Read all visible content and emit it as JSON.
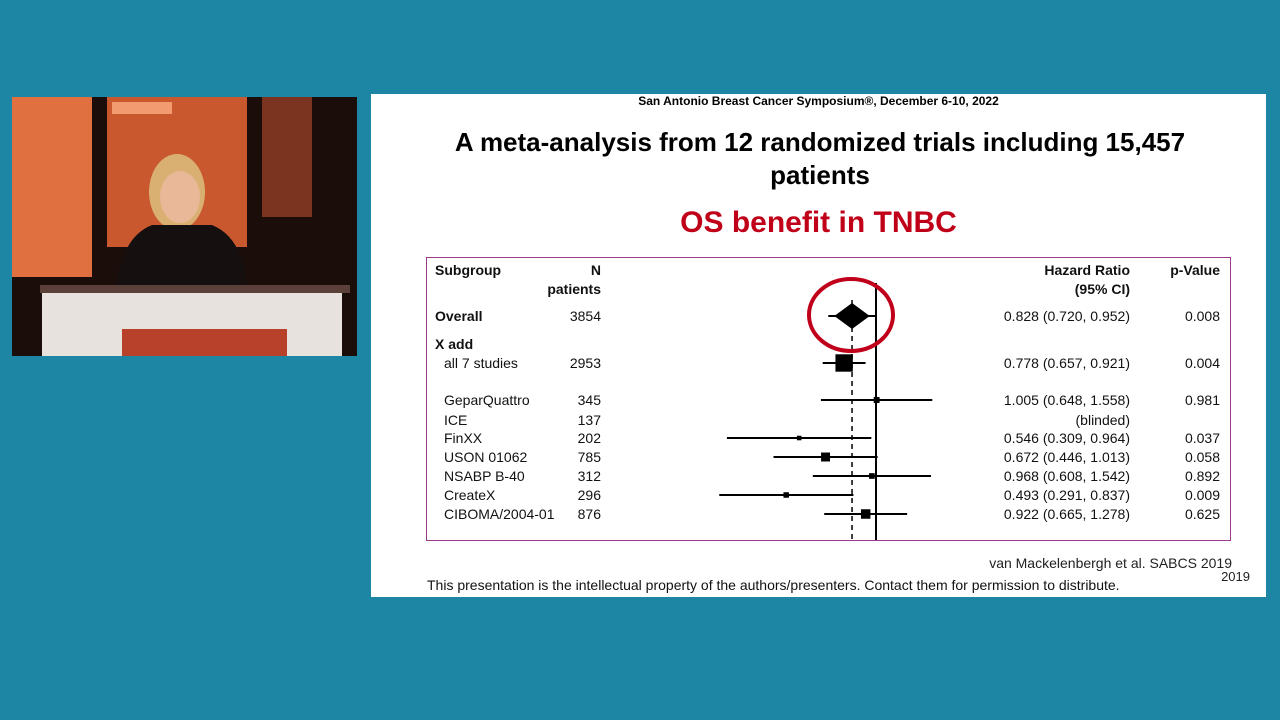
{
  "chart_data": {
    "type": "forest",
    "conference": "San Antonio Breast Cancer Symposium®, December 6-10, 2022",
    "title": "A meta-analysis from 12 randomized trials including 15,457 patients",
    "subtitle": "OS benefit in TNBC",
    "columns": {
      "subgroup": "Subgroup",
      "n": [
        "N",
        "patients"
      ],
      "hr": [
        "Hazard Ratio",
        "(95% CI)"
      ],
      "p": "p-Value"
    },
    "rows": [
      {
        "label": "Overall",
        "n": 3854,
        "hr": 0.828,
        "lo": 0.72,
        "hi": 0.952,
        "hr_label": "0.828 (0.720, 0.952)",
        "p": 0.008,
        "bold": true,
        "marker": "diamond"
      },
      {
        "label": "X add",
        "bold": true
      },
      {
        "label": "all 7 studies",
        "n": 2953,
        "hr": 0.778,
        "lo": 0.657,
        "hi": 0.921,
        "hr_label": "0.778 (0.657, 0.921)",
        "p": 0.004
      },
      {
        "label": "GeparQuattro",
        "n": 345,
        "hr": 1.005,
        "lo": 0.648,
        "hi": 1.558,
        "hr_label": "1.005 (0.648, 1.558)",
        "p": 0.981
      },
      {
        "label": "ICE",
        "n": 137,
        "hr_label": "(blinded)"
      },
      {
        "label": "FinXX",
        "n": 202,
        "hr": 0.546,
        "lo": 0.309,
        "hi": 0.964,
        "hr_label": "0.546 (0.309, 0.964)",
        "p": 0.037
      },
      {
        "label": "USON 01062",
        "n": 785,
        "hr": 0.672,
        "lo": 0.446,
        "hi": 1.013,
        "hr_label": "0.672 (0.446, 1.013)",
        "p": 0.058
      },
      {
        "label": "NSABP B-40",
        "n": 312,
        "hr": 0.968,
        "lo": 0.608,
        "hi": 1.542,
        "hr_label": "0.968 (0.608, 1.542)",
        "p": 0.892
      },
      {
        "label": "CreateX",
        "n": 296,
        "hr": 0.493,
        "lo": 0.291,
        "hi": 0.837,
        "hr_label": "0.493 (0.291, 0.837)",
        "p": 0.009
      },
      {
        "label": "CIBOMA/2004-01",
        "n": 876,
        "hr": 0.922,
        "lo": 0.665,
        "hi": 1.278,
        "hr_label": "0.922 (0.665, 1.278)",
        "p": 0.625
      }
    ],
    "reference": 1,
    "xlim": [
      0.25,
      2
    ],
    "log_x": true,
    "source": "van Mackelenbergh et al. SABCS 2019",
    "source_year": "2019",
    "footer": "This presentation is the intellectual property of the authors/presenters. Contact them for permission to distribute."
  }
}
